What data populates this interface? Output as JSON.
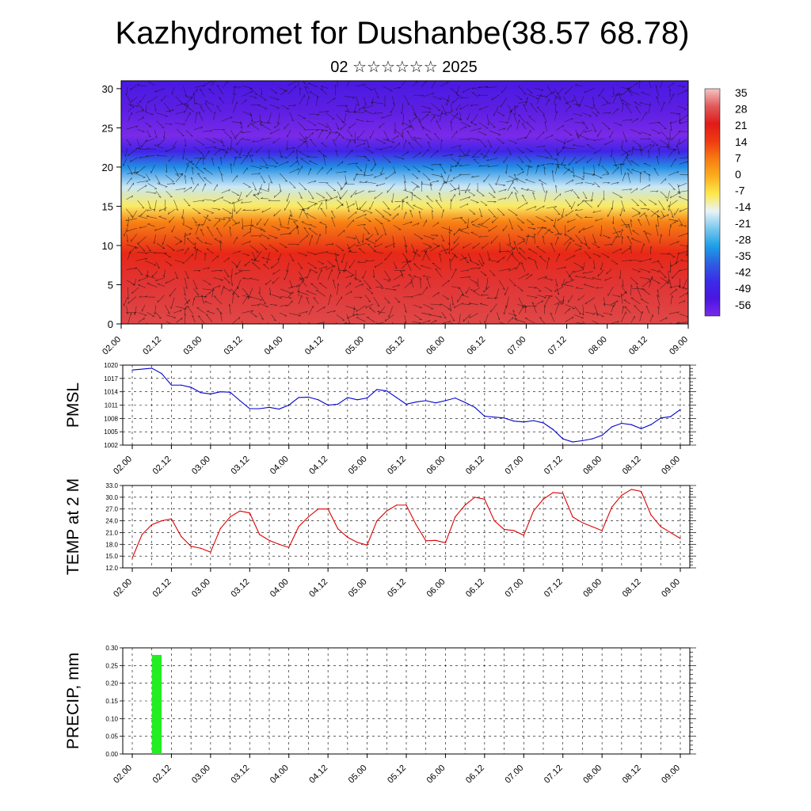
{
  "page": {
    "title": "Kazhydromet for Dushanbe(38.57 68.78)",
    "subtitle": "02 ☆☆☆☆☆☆ 2025"
  },
  "time_ticks": [
    "02.00",
    "02.12",
    "03.00",
    "03.12",
    "04.00",
    "04.12",
    "05.00",
    "05.12",
    "06.00",
    "06.12",
    "07.00",
    "07.12",
    "08.00",
    "08.12",
    "09.00"
  ],
  "chart_data": [
    {
      "type": "heatmap",
      "id": "cross_section",
      "xlabel": "",
      "ylabel": "",
      "x_range": [
        0,
        168
      ],
      "ylim": [
        0,
        31
      ],
      "yticks": [
        0,
        5,
        10,
        15,
        20,
        25,
        30
      ],
      "vector_overlay": true,
      "colorbar": {
        "labels": [
          "35",
          "28",
          "21",
          "14",
          "7",
          "0",
          "-7",
          "-14",
          "-21",
          "-28",
          "-35",
          "-42",
          "-49",
          "-56"
        ],
        "colors": [
          "#f4c4c4",
          "#e05a5a",
          "#e11a1a",
          "#f03a12",
          "#f77b12",
          "#fbae1e",
          "#fde84a",
          "#e8f4f8",
          "#7ac8ee",
          "#1d9fe6",
          "#2d5fe0",
          "#3a2ce8",
          "#4a16e0",
          "#7a2ae8"
        ]
      },
      "temperature_profile": [
        {
          "height": 0,
          "value": 26
        },
        {
          "height": 5,
          "value": 24
        },
        {
          "height": 9,
          "value": 18
        },
        {
          "height": 13,
          "value": 6
        },
        {
          "height": 15,
          "value": -8
        },
        {
          "height": 17.5,
          "value": -16
        },
        {
          "height": 20,
          "value": -30
        },
        {
          "height": 22,
          "value": -45
        },
        {
          "height": 24,
          "value": -58
        },
        {
          "height": 27,
          "value": -52
        },
        {
          "height": 31,
          "value": -48
        }
      ]
    },
    {
      "type": "line",
      "id": "pmsl",
      "ylabel": "PMSL",
      "ylim": [
        1002,
        1020
      ],
      "yticks": [
        "1002",
        "1005",
        "1008",
        "1011",
        "1014",
        "1017",
        "1020"
      ],
      "color": "#0000cc",
      "x": [
        0,
        6,
        9,
        12,
        15,
        18,
        21,
        24,
        27,
        30,
        33,
        36,
        39,
        42,
        45,
        48,
        51,
        54,
        57,
        60,
        63,
        66,
        69,
        72,
        75,
        78,
        81,
        84,
        87,
        90,
        93,
        96,
        99,
        102,
        105,
        108,
        111,
        114,
        117,
        120,
        123,
        126,
        129,
        132,
        135,
        138,
        141,
        144,
        147,
        150,
        153,
        156,
        159,
        162,
        165,
        168
      ],
      "values": [
        1018.9,
        1019.3,
        1018.1,
        1015.5,
        1015.5,
        1015.0,
        1013.8,
        1013.5,
        1014.0,
        1013.9,
        1012.0,
        1010.2,
        1010.2,
        1010.5,
        1010.1,
        1011.0,
        1012.7,
        1012.8,
        1012.2,
        1011.0,
        1011.2,
        1012.7,
        1012.2,
        1012.6,
        1014.5,
        1014.2,
        1012.7,
        1011.2,
        1011.7,
        1012.0,
        1011.5,
        1012.0,
        1012.6,
        1011.6,
        1010.5,
        1008.5,
        1008.3,
        1008.1,
        1007.4,
        1007.2,
        1007.5,
        1007.0,
        1005.5,
        1003.4,
        1002.7,
        1003.0,
        1003.4,
        1004.2,
        1006.1,
        1006.9,
        1006.6,
        1005.7,
        1006.6,
        1008.1,
        1008.4,
        1010.0
      ]
    },
    {
      "type": "line",
      "id": "temp2m",
      "ylabel": "TEMP at 2 M",
      "ylim": [
        12,
        33
      ],
      "yticks": [
        "12.0",
        "15.0",
        "18.0",
        "21.0",
        "24.0",
        "27.0",
        "30.0",
        "33.0"
      ],
      "color": "#dd0000",
      "x": [
        0,
        3,
        6,
        9,
        12,
        15,
        18,
        21,
        24,
        27,
        30,
        33,
        36,
        39,
        42,
        45,
        48,
        51,
        54,
        57,
        60,
        63,
        66,
        69,
        72,
        75,
        78,
        81,
        84,
        87,
        90,
        93,
        96,
        99,
        102,
        105,
        108,
        111,
        114,
        117,
        120,
        123,
        126,
        129,
        132,
        135,
        138,
        141,
        144,
        147,
        150,
        153,
        156,
        159,
        162,
        165,
        168
      ],
      "values": [
        14.5,
        20.5,
        23.0,
        24.0,
        24.5,
        20.0,
        17.5,
        17.0,
        16.0,
        22.0,
        25.0,
        26.5,
        26.0,
        20.5,
        19.0,
        18.0,
        17.2,
        22.5,
        25.0,
        27.0,
        27.0,
        22.0,
        19.8,
        18.5,
        17.8,
        24.0,
        26.5,
        28.0,
        28.0,
        23.0,
        18.9,
        19.0,
        18.4,
        25.0,
        28.0,
        30.0,
        29.5,
        24.0,
        21.8,
        21.5,
        20.3,
        26.5,
        29.5,
        31.2,
        31.0,
        25.0,
        23.5,
        22.5,
        21.5,
        27.5,
        30.5,
        32.0,
        31.5,
        25.5,
        22.5,
        21.0,
        19.5
      ]
    },
    {
      "type": "bar",
      "id": "precip",
      "ylabel": "PRECIP, mm",
      "ylim": [
        0,
        0.3
      ],
      "yticks": [
        "0.00",
        "0.05",
        "0.10",
        "0.15",
        "0.20",
        "0.25",
        "0.30"
      ],
      "color": "#22ee22",
      "bars": [
        {
          "x_start": 6,
          "x_end": 9,
          "value": 0.28
        }
      ]
    }
  ]
}
